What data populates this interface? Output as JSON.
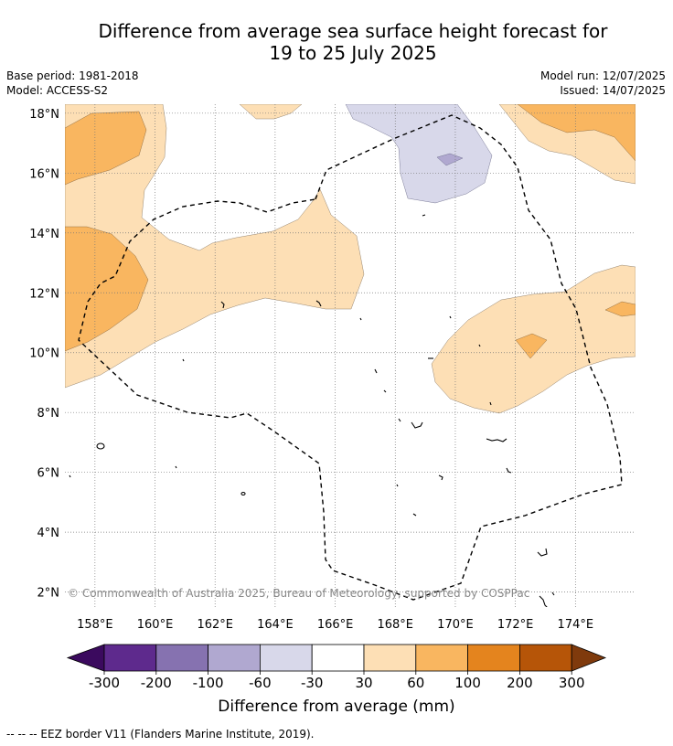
{
  "title": {
    "line1": "Difference from average sea surface height forecast for",
    "line2": "19 to 25 July 2025"
  },
  "meta": {
    "base_period": "Base period: 1981-2018",
    "model": "Model: ACCESS-S2",
    "model_run": "Model run: 12/07/2025",
    "issued": "Issued: 14/07/2025"
  },
  "map": {
    "lon_range": [
      157,
      176
    ],
    "lat_range": [
      1.5,
      18.3
    ],
    "lat_ticks": [
      "18°N",
      "16°N",
      "14°N",
      "12°N",
      "10°N",
      "8°N",
      "6°N",
      "4°N",
      "2°N"
    ],
    "lon_ticks": [
      "158°E",
      "160°E",
      "162°E",
      "164°E",
      "166°E",
      "168°E",
      "170°E",
      "172°E",
      "174°E"
    ],
    "copyright": "© Commonwealth of Australia 2025, Bureau of Meteorology, supported by COSPPac",
    "grid": "dotted"
  },
  "colorbar": {
    "label": "Difference from average (mm)",
    "ticks": [
      "-300",
      "-200",
      "-100",
      "-60",
      "-30",
      "30",
      "60",
      "100",
      "200",
      "300"
    ],
    "colors": [
      "#3b0a5e",
      "#5e2a8d",
      "#8672b0",
      "#b0a8d0",
      "#d8d8ea",
      "#ffffff",
      "#fddfb5",
      "#f9b660",
      "#e4841e",
      "#b65508",
      "#7f3a0c"
    ]
  },
  "footer": {
    "legend_text": "--  --  -- EEZ border V11 (Flanders Marine Institute, 2019)."
  }
}
